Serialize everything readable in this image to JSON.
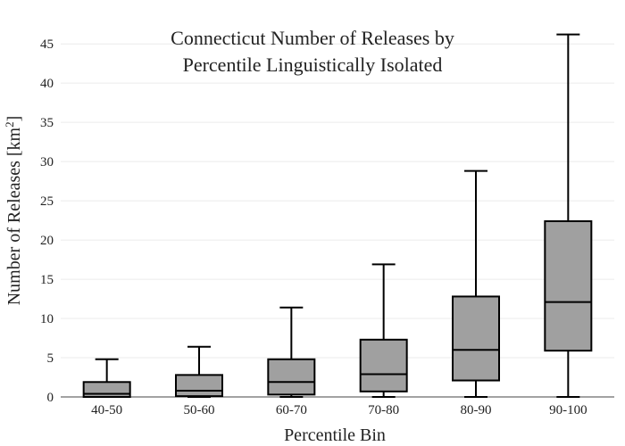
{
  "chart_data": {
    "type": "box",
    "title": [
      "Connecticut Number of Releases by",
      "Percentile Linguistically Isolated"
    ],
    "xlabel": "Percentile Bin",
    "ylabel": "Number of Releases  [km",
    "ylabel_superscript": "2",
    "ylabel_suffix": "]",
    "ylim": [
      0,
      46.5
    ],
    "yticks": [
      0,
      5,
      10,
      15,
      20,
      25,
      30,
      35,
      40,
      45
    ],
    "grid": true,
    "box_color": "#a0a0a0",
    "line_color": "#000000",
    "categories": [
      "40-50",
      "50-60",
      "60-70",
      "70-80",
      "80-90",
      "90-100"
    ],
    "boxes": [
      {
        "min": 0,
        "q1": 0,
        "median": 0.4,
        "q3": 1.9,
        "max": 4.8
      },
      {
        "min": 0,
        "q1": 0.1,
        "median": 0.8,
        "q3": 2.8,
        "max": 6.4
      },
      {
        "min": 0,
        "q1": 0.3,
        "median": 1.9,
        "q3": 4.8,
        "max": 11.4
      },
      {
        "min": 0,
        "q1": 0.7,
        "median": 2.9,
        "q3": 7.3,
        "max": 16.9
      },
      {
        "min": 0,
        "q1": 2.1,
        "median": 6.0,
        "q3": 12.8,
        "max": 28.8
      },
      {
        "min": 0,
        "q1": 5.9,
        "median": 12.1,
        "q3": 22.4,
        "max": 46.2
      }
    ]
  }
}
